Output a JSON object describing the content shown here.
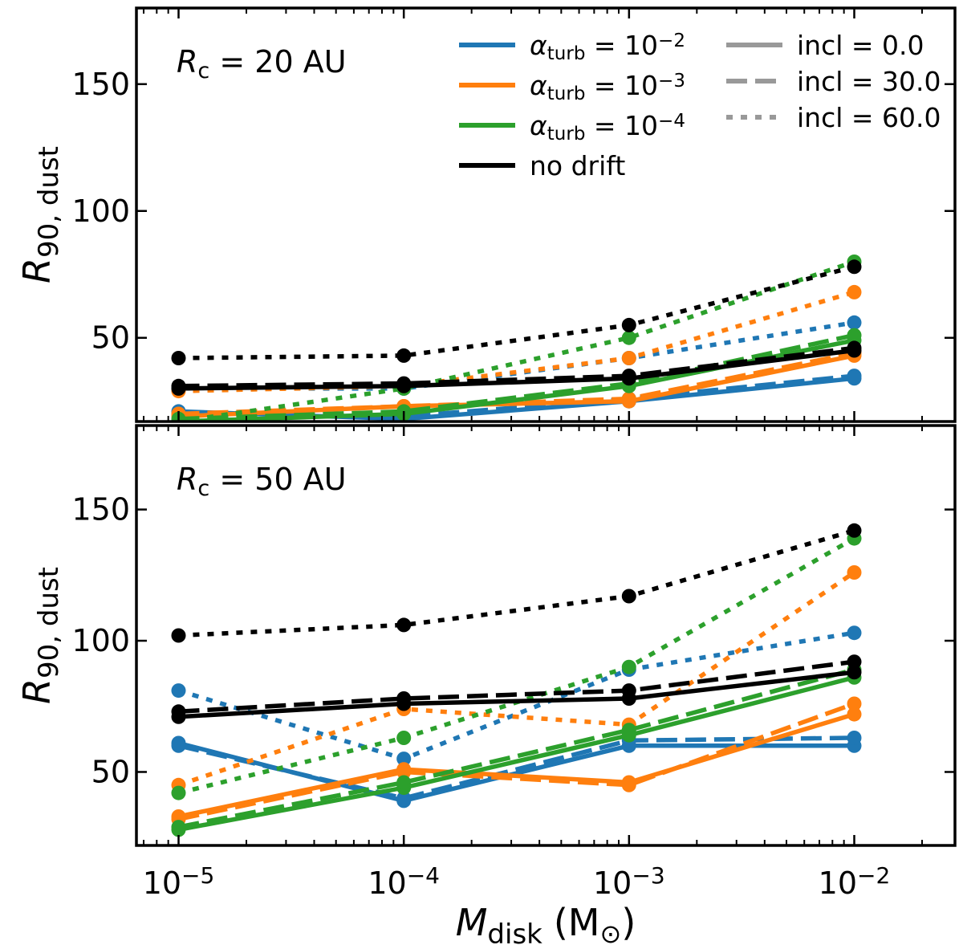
{
  "colors": {
    "blue": "#1f77b4",
    "orange": "#ff7f0e",
    "green": "#2ca02c",
    "black": "#000000",
    "gray": "#999999"
  },
  "figure": {
    "xlabel_main": "M",
    "xlabel_sub": "disk",
    "xlabel_unit": "(M",
    "xlabel_sun": "⊙",
    "xlabel_close": ")",
    "ylabel_main": "R",
    "ylabel_sub": "90, dust"
  },
  "legend": {
    "placement": "top",
    "colors": [
      {
        "label": "α",
        "sub": "turb",
        "eq": " = 10",
        "sup": "−2",
        "color": "blue"
      },
      {
        "label": "α",
        "sub": "turb",
        "eq": " = 10",
        "sup": "−3",
        "color": "orange"
      },
      {
        "label": "α",
        "sub": "turb",
        "eq": " = 10",
        "sup": "−4",
        "color": "green"
      },
      {
        "label": "no drift",
        "sub": "",
        "eq": "",
        "sup": "",
        "color": "black"
      }
    ],
    "styles": [
      {
        "label": "incl = 0.0",
        "dash": "solid"
      },
      {
        "label": "incl = 30.0",
        "dash": "dashed"
      },
      {
        "label": "incl = 60.0",
        "dash": "dotted"
      }
    ]
  },
  "chart_data": [
    {
      "type": "line",
      "panel_label_main": "R",
      "panel_label_sub": "c",
      "panel_label_rest": " = 20 AU",
      "xscale": "log",
      "xlim": [
        6.5e-06,
        0.028
      ],
      "ylim": [
        17,
        180
      ],
      "yticks": [
        50,
        100,
        150
      ],
      "xticks": [
        1e-05,
        0.0001,
        0.001,
        0.01
      ],
      "xtick_labels": [
        {
          "base": "10",
          "exp": "−5"
        },
        {
          "base": "10",
          "exp": "−4"
        },
        {
          "base": "10",
          "exp": "−3"
        },
        {
          "base": "10",
          "exp": "−2"
        }
      ],
      "x": [
        1e-05,
        0.0001,
        0.001,
        0.01
      ],
      "series": [
        {
          "color": "blue",
          "incl": 0.0,
          "values": [
            21,
            18,
            25,
            34
          ]
        },
        {
          "color": "blue",
          "incl": 30.0,
          "values": [
            20,
            19,
            26,
            35
          ]
        },
        {
          "color": "blue",
          "incl": 60.0,
          "values": [
            30,
            30,
            42,
            56
          ]
        },
        {
          "color": "orange",
          "incl": 0.0,
          "values": [
            19,
            23,
            25,
            43
          ]
        },
        {
          "color": "orange",
          "incl": 30.0,
          "values": [
            20,
            23,
            26,
            44
          ]
        },
        {
          "color": "orange",
          "incl": 60.0,
          "values": [
            29,
            31,
            42,
            68
          ]
        },
        {
          "color": "green",
          "incl": 0.0,
          "values": [
            17,
            20,
            31,
            49
          ]
        },
        {
          "color": "green",
          "incl": 30.0,
          "values": [
            18,
            21,
            32,
            51
          ]
        },
        {
          "color": "green",
          "incl": 60.0,
          "values": [
            17,
            30,
            50,
            80
          ]
        },
        {
          "color": "black",
          "incl": 0.0,
          "values": [
            30,
            31,
            34,
            45
          ]
        },
        {
          "color": "black",
          "incl": 30.0,
          "values": [
            31,
            32,
            35,
            46
          ]
        },
        {
          "color": "black",
          "incl": 60.0,
          "values": [
            42,
            43,
            55,
            78
          ]
        }
      ]
    },
    {
      "type": "line",
      "panel_label_main": "R",
      "panel_label_sub": "c",
      "panel_label_rest": " = 50 AU",
      "xscale": "log",
      "xlim": [
        6.5e-06,
        0.028
      ],
      "ylim": [
        22,
        182
      ],
      "yticks": [
        50,
        100,
        150
      ],
      "xticks": [
        1e-05,
        0.0001,
        0.001,
        0.01
      ],
      "xtick_labels": [
        {
          "base": "10",
          "exp": "−5"
        },
        {
          "base": "10",
          "exp": "−4"
        },
        {
          "base": "10",
          "exp": "−3"
        },
        {
          "base": "10",
          "exp": "−2"
        }
      ],
      "x": [
        1e-05,
        0.0001,
        0.001,
        0.01
      ],
      "series": [
        {
          "color": "blue",
          "incl": 0.0,
          "values": [
            61,
            39,
            60,
            60
          ]
        },
        {
          "color": "blue",
          "incl": 30.0,
          "values": [
            60,
            40,
            62,
            63
          ]
        },
        {
          "color": "blue",
          "incl": 60.0,
          "values": [
            81,
            55,
            89,
            103
          ]
        },
        {
          "color": "orange",
          "incl": 0.0,
          "values": [
            33,
            51,
            46,
            72
          ]
        },
        {
          "color": "orange",
          "incl": 30.0,
          "values": [
            32,
            50,
            45,
            76
          ]
        },
        {
          "color": "orange",
          "incl": 60.0,
          "values": [
            45,
            74,
            68,
            126
          ]
        },
        {
          "color": "green",
          "incl": 0.0,
          "values": [
            28,
            44,
            64,
            86
          ]
        },
        {
          "color": "green",
          "incl": 30.0,
          "values": [
            29,
            46,
            66,
            89
          ]
        },
        {
          "color": "green",
          "incl": 60.0,
          "values": [
            42,
            63,
            90,
            139
          ]
        },
        {
          "color": "black",
          "incl": 0.0,
          "values": [
            71,
            76,
            78,
            88
          ]
        },
        {
          "color": "black",
          "incl": 30.0,
          "values": [
            73,
            78,
            81,
            92
          ]
        },
        {
          "color": "black",
          "incl": 60.0,
          "values": [
            102,
            106,
            117,
            142
          ]
        }
      ]
    }
  ]
}
